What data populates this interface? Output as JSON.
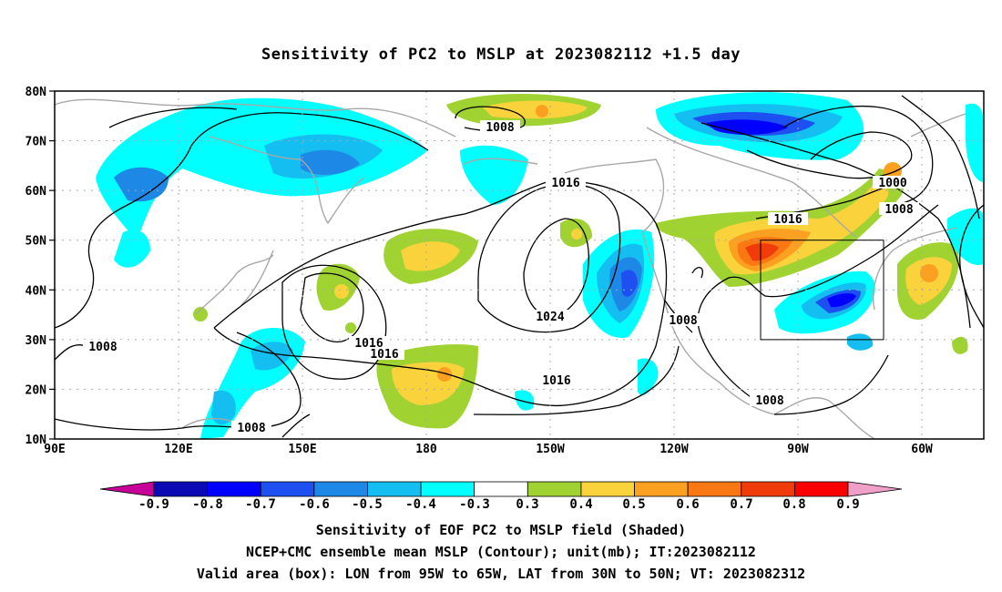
{
  "title": "Sensitivity of PC2 to MSLP at 2023082112 +1.5 day",
  "map": {
    "lat_labels": [
      "80N",
      "70N",
      "60N",
      "50N",
      "40N",
      "30N",
      "20N",
      "10N"
    ],
    "lon_labels": [
      "90E",
      "120E",
      "150E",
      "180",
      "150W",
      "120W",
      "90W",
      "60W"
    ],
    "contour_labels": [
      "1008",
      "1016",
      "1000",
      "1008",
      "1016",
      "1024",
      "1008",
      "1008",
      "1016",
      "1016",
      "1016",
      "1008",
      "1008"
    ],
    "valid_box": {
      "lon_from": "95W",
      "lon_to": "65W",
      "lat_from": "30N",
      "lat_to": "50N"
    }
  },
  "colorbar": {
    "ticks": [
      "-0.9",
      "-0.8",
      "-0.7",
      "-0.6",
      "-0.5",
      "-0.4",
      "-0.3",
      "0.3",
      "0.4",
      "0.5",
      "0.6",
      "0.7",
      "0.8",
      "0.9"
    ],
    "colors": [
      "#c70098",
      "#0a0ab4",
      "#0000ff",
      "#1e4ff0",
      "#1e88e6",
      "#14bef0",
      "#00ffff",
      "#ffffff",
      "#a0d232",
      "#fad23c",
      "#fba020",
      "#fa7814",
      "#f03c0a",
      "#fa0000",
      "#f0a0c8"
    ]
  },
  "captions": {
    "line1": "Sensitivity of EOF PC2 to MSLP field (Shaded)",
    "line2": "NCEP+CMC ensemble mean MSLP (Contour); unit(mb); IT:2023082112",
    "line3": "Valid area (box): LON from 95W to 65W, LAT from 30N to 50N; VT: 2023082312"
  }
}
